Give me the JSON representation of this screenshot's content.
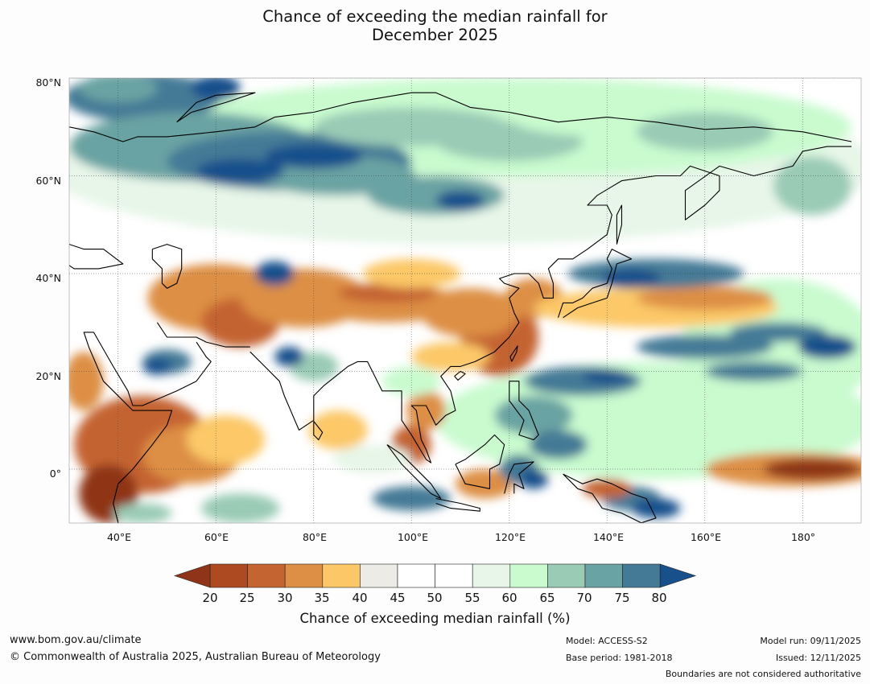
{
  "title_line1": "Chance of exceeding the median rainfall for",
  "title_line2": "December 2025",
  "lat_labels": [
    "80°N",
    "60°N",
    "40°N",
    "20°N",
    "0°"
  ],
  "lon_labels": [
    "40°E",
    "60°E",
    "80°E",
    "100°E",
    "120°E",
    "140°E",
    "160°E",
    "180°"
  ],
  "colorbar": {
    "ticks": [
      "20",
      "25",
      "30",
      "35",
      "40",
      "45",
      "50",
      "55",
      "60",
      "65",
      "70",
      "75",
      "80"
    ],
    "colors": {
      "below20": "#8f3418",
      "c20": "#ad4a22",
      "c25": "#c46430",
      "c30": "#dd8f45",
      "c35": "#fcc867",
      "c40": "#ecebe6",
      "c45": "#ffffff",
      "c50": "#ffffff",
      "c55": "#e7f6e8",
      "c60": "#c9fbcf",
      "c65": "#9acbb5",
      "c70": "#6aa3a3",
      "c75": "#457a96",
      "above80": "#18508c"
    },
    "label": "Chance of exceeding median rainfall (%)"
  },
  "footer": {
    "url": "www.bom.gov.au/climate",
    "copyright": "© Commonwealth of Australia 2025, Australian Bureau of Meteorology",
    "model": "Model: ACCESS-S2",
    "base_period": "Base period: 1981-2018",
    "model_run": "Model run: 09/11/2025",
    "issued": "Issued: 12/11/2025",
    "boundaries_note": "Boundaries are not considered authoritative"
  }
}
